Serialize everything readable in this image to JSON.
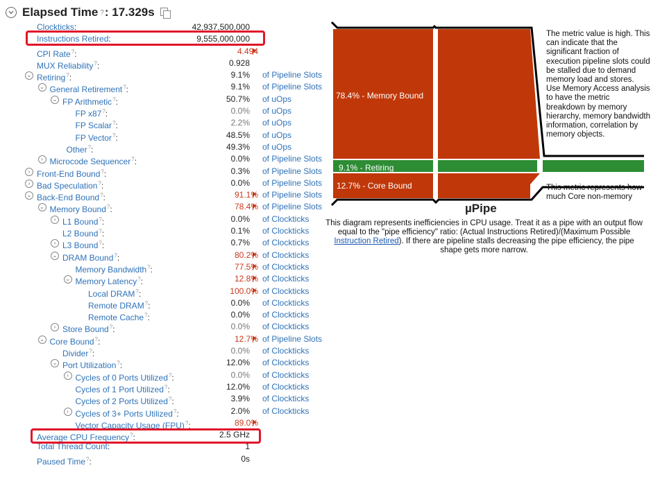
{
  "header": {
    "title": "Elapsed Time",
    "value": ": 17.329s"
  },
  "rows": [
    {
      "name": "Clockticks",
      "value": "42,937,500,000",
      "unit": "",
      "level": 0,
      "expander": "none"
    },
    {
      "name": "Instructions Retired",
      "value": "9,555,000,000",
      "unit": "",
      "level": 0,
      "expander": "none"
    },
    {
      "name": "CPI Rate",
      "value": "4.494",
      "unit": "",
      "level": 0,
      "expander": "none",
      "hot": true,
      "q": true
    },
    {
      "name": "MUX Reliability",
      "value": "0.928",
      "unit": "",
      "level": 0,
      "expander": "none",
      "q": true
    },
    {
      "name": "Retiring",
      "value": "9.1%",
      "unit": "of Pipeline Slots",
      "level": 0,
      "expander": "open",
      "q": true
    },
    {
      "name": "General Retirement",
      "value": "9.1%",
      "unit": "of Pipeline Slots",
      "level": 1,
      "expander": "open",
      "q": true
    },
    {
      "name": "FP Arithmetic",
      "value": "50.7%",
      "unit": "of uOps",
      "level": 2,
      "expander": "open",
      "q": true
    },
    {
      "name": "FP x87",
      "value": "0.0%",
      "unit": "of uOps",
      "level": 3,
      "expander": "none",
      "gray": true,
      "q": true
    },
    {
      "name": "FP Scalar",
      "value": "2.2%",
      "unit": "of uOps",
      "level": 3,
      "expander": "none",
      "gray": true,
      "q": true
    },
    {
      "name": "FP Vector",
      "value": "48.5%",
      "unit": "of uOps",
      "level": 3,
      "expander": "none",
      "q": true
    },
    {
      "name": "Other",
      "value": "49.3%",
      "unit": "of uOps",
      "level": 2.3,
      "expander": "none",
      "q": true
    },
    {
      "name": "Microcode Sequencer",
      "value": "0.0%",
      "unit": "of Pipeline Slots",
      "level": 1,
      "expander": "closed",
      "q": true
    },
    {
      "name": "Front-End Bound",
      "value": "0.3%",
      "unit": "of Pipeline Slots",
      "level": 0,
      "expander": "closed",
      "q": true
    },
    {
      "name": "Bad Speculation",
      "value": "0.0%",
      "unit": "of Pipeline Slots",
      "level": 0,
      "expander": "closed",
      "q": true
    },
    {
      "name": "Back-End Bound",
      "value": "91.1%",
      "unit": "of Pipeline Slots",
      "level": 0,
      "expander": "open",
      "hot": true,
      "q": true
    },
    {
      "name": "Memory Bound",
      "value": "78.4%",
      "unit": "of Pipeline Slots",
      "level": 1,
      "expander": "open",
      "hot": true,
      "q": true
    },
    {
      "name": "L1 Bound",
      "value": "0.0%",
      "unit": "of Clockticks",
      "level": 2,
      "expander": "closed",
      "q": true
    },
    {
      "name": "L2 Bound",
      "value": "0.1%",
      "unit": "of Clockticks",
      "level": 2,
      "expander": "none",
      "q": true
    },
    {
      "name": "L3 Bound",
      "value": "0.7%",
      "unit": "of Clockticks",
      "level": 2,
      "expander": "closed",
      "q": true
    },
    {
      "name": "DRAM Bound",
      "value": "80.2%",
      "unit": "of Clockticks",
      "level": 2,
      "expander": "open",
      "hot": true,
      "q": true
    },
    {
      "name": "Memory Bandwidth",
      "value": "77.5%",
      "unit": "of Clockticks",
      "level": 3,
      "expander": "none",
      "hot": true,
      "q": true
    },
    {
      "name": "Memory Latency",
      "value": "12.8%",
      "unit": "of Clockticks",
      "level": 3,
      "expander": "open",
      "hot": true,
      "q": true
    },
    {
      "name": "Local DRAM",
      "value": "100.0%",
      "unit": "of Clockticks",
      "level": 4,
      "expander": "none",
      "hot": true,
      "q": true
    },
    {
      "name": "Remote DRAM",
      "value": "0.0%",
      "unit": "of Clockticks",
      "level": 4,
      "expander": "none",
      "q": true
    },
    {
      "name": "Remote Cache",
      "value": "0.0%",
      "unit": "of Clockticks",
      "level": 4,
      "expander": "none",
      "q": true
    },
    {
      "name": "Store Bound",
      "value": "0.0%",
      "unit": "of Clockticks",
      "level": 2,
      "expander": "closed",
      "gray": true,
      "q": true
    },
    {
      "name": "Core Bound",
      "value": "12.7%",
      "unit": "of Pipeline Slots",
      "level": 1,
      "expander": "open",
      "hot": true,
      "q": true
    },
    {
      "name": "Divider",
      "value": "0.0%",
      "unit": "of Clockticks",
      "level": 2,
      "expander": "none",
      "gray": true,
      "q": true
    },
    {
      "name": "Port Utilization",
      "value": "12.0%",
      "unit": "of Clockticks",
      "level": 2,
      "expander": "open",
      "q": true
    },
    {
      "name": "Cycles of 0 Ports Utilized",
      "value": "0.0%",
      "unit": "of Clockticks",
      "level": 3,
      "expander": "closed",
      "gray": true,
      "q": true
    },
    {
      "name": "Cycles of 1 Port Utilized",
      "value": "12.0%",
      "unit": "of Clockticks",
      "level": 3,
      "expander": "none",
      "q": true
    },
    {
      "name": "Cycles of 2 Ports Utilized",
      "value": "3.9%",
      "unit": "of Clockticks",
      "level": 3,
      "expander": "none",
      "q": true
    },
    {
      "name": "Cycles of 3+ Ports Utilized",
      "value": "2.0%",
      "unit": "of Clockticks",
      "level": 3,
      "expander": "closed",
      "q": true
    },
    {
      "name": "Vector Capacity Usage (FPU)",
      "value": "89.0%",
      "unit": "",
      "level": 3,
      "expander": "none",
      "hot": true,
      "q": true
    },
    {
      "name": "Average CPU Frequency",
      "value": "2.5 GHz",
      "unit": "",
      "level": 0,
      "expander": "none",
      "q": true
    },
    {
      "name": "Total Thread Count",
      "value": "1",
      "unit": "",
      "level": 0,
      "expander": "none"
    },
    {
      "name": "Paused Time",
      "value": "0s",
      "unit": "",
      "level": 0,
      "expander": "none",
      "q": true
    }
  ],
  "pipe": {
    "memory_label": "78.4% - Memory Bound",
    "retiring_label": "9.1% - Retiring",
    "core_label": "12.7% - Core Bound",
    "note_high": "The metric value is high. This can indicate that the significant fraction of execution pipeline slots could be stalled due to demand memory load and stores. Use Memory Access analysis to have the metric breakdown by memory hierarchy, memory bandwidth information, correlation by memory objects.",
    "note_core": "This metric represents how much Core non-memory",
    "title": "µPipe",
    "desc_before": "This diagram represents inefficiencies in CPU usage. Treat it as a pipe with an output flow equal to the \"pipe efficiency\" ratio: (Actual Instructions Retired)/(Maximum Possible ",
    "desc_link": "Instruction Retired",
    "desc_after": "). If there are pipeline stalls decreasing the pipe efficiency, the pipe shape gets more narrow."
  },
  "colors": {
    "memory": "#c0380a",
    "retiring": "#2d8c34",
    "core": "#c0380a",
    "highlight": "#e0152a",
    "link": "#2e72b8"
  }
}
